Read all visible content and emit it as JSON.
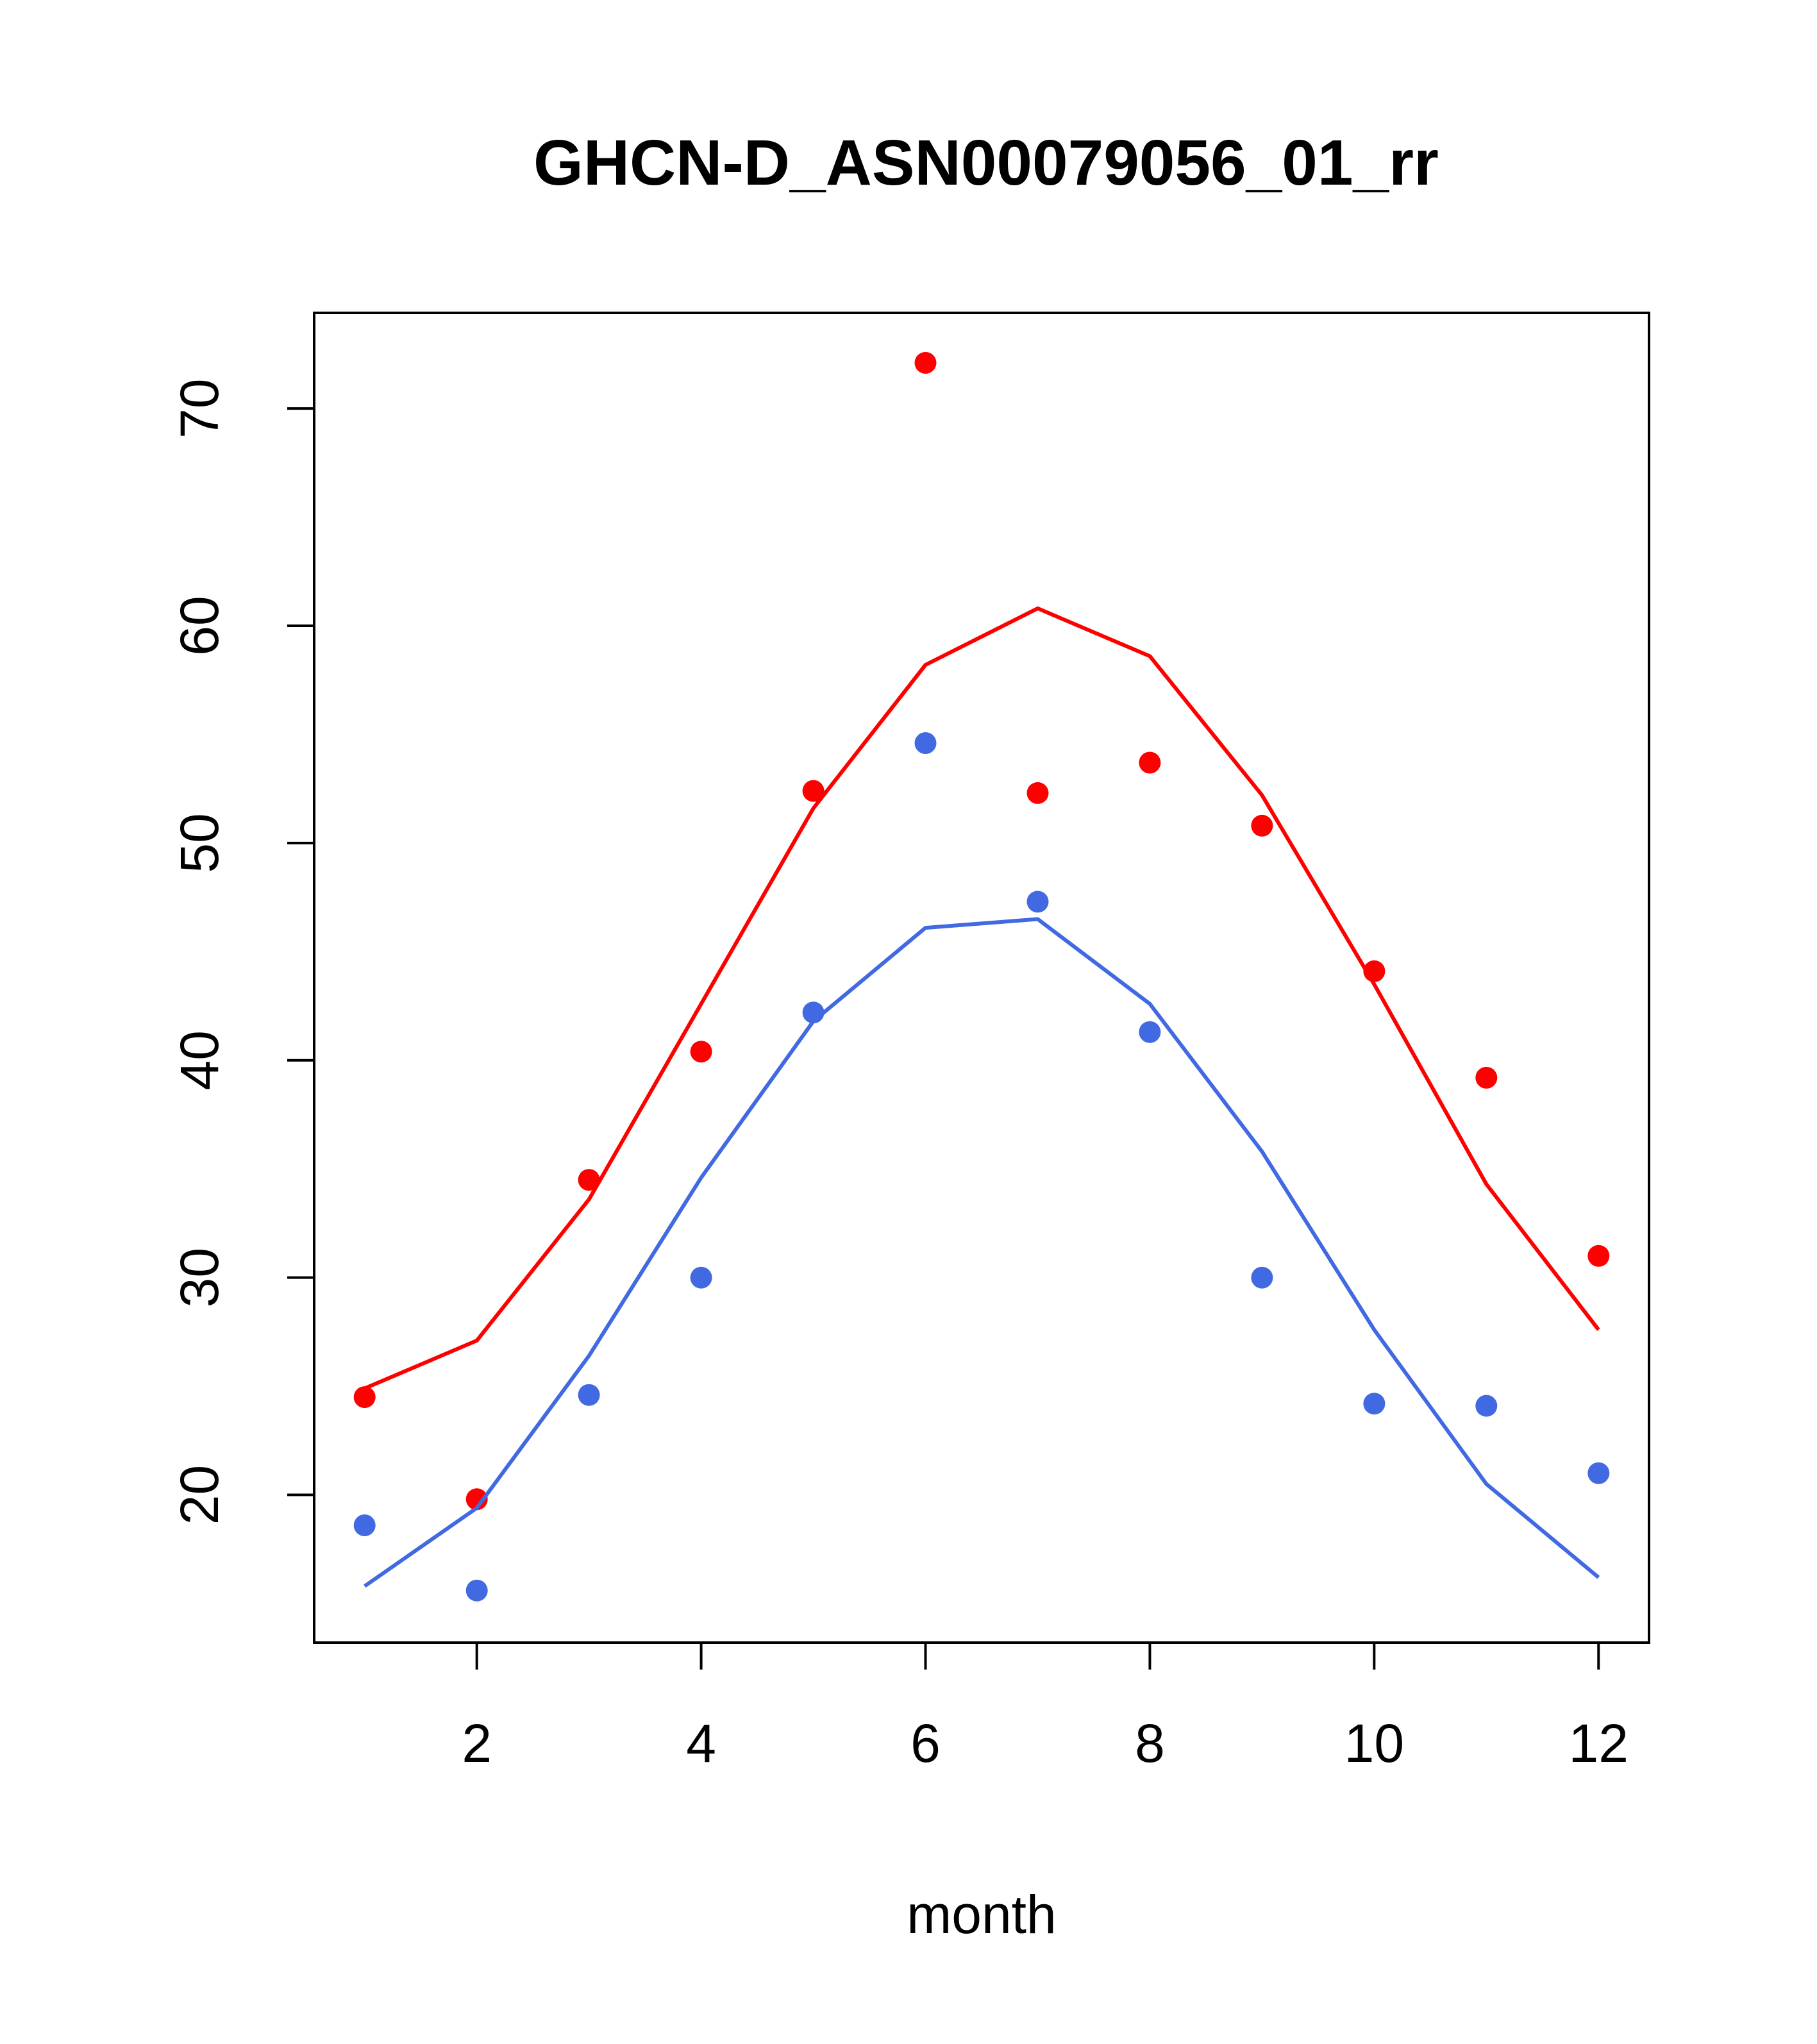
{
  "chart_data": {
    "type": "line",
    "title": "GHCN-D_ASN00079056_01_rr",
    "xlabel": "month",
    "ylabel": "",
    "xlim": [
      0.55,
      12.45
    ],
    "ylim": [
      13.2,
      74.4
    ],
    "x_ticks": [
      2,
      4,
      6,
      8,
      10,
      12
    ],
    "y_ticks": [
      20,
      30,
      40,
      50,
      60,
      70
    ],
    "grid": false,
    "colors": {
      "red": "#ff0000",
      "blue": "#4169e1",
      "axis": "#000000"
    },
    "series": [
      {
        "color": "#ff0000",
        "kind": "points",
        "x": [
          1,
          2,
          3,
          4,
          5,
          6,
          7,
          8,
          9,
          10,
          11,
          12
        ],
        "y": [
          24.5,
          19.8,
          34.5,
          40.4,
          52.4,
          72.1,
          52.3,
          53.7,
          50.8,
          44.1,
          39.2,
          31.0
        ]
      },
      {
        "color": "#ff0000",
        "kind": "line",
        "x": [
          1,
          2,
          3,
          4,
          5,
          6,
          7,
          8,
          9,
          10,
          11,
          12
        ],
        "y": [
          24.9,
          27.1,
          33.6,
          42.6,
          51.6,
          58.2,
          60.8,
          58.6,
          52.2,
          43.5,
          34.3,
          27.6
        ]
      },
      {
        "color": "#4169e1",
        "kind": "points",
        "x": [
          1,
          2,
          3,
          4,
          5,
          6,
          7,
          8,
          9,
          10,
          11,
          12
        ],
        "y": [
          18.6,
          15.6,
          24.6,
          30.0,
          42.2,
          54.6,
          47.3,
          41.3,
          30.0,
          24.2,
          24.1,
          21.0
        ]
      },
      {
        "color": "#4169e1",
        "kind": "line",
        "x": [
          1,
          2,
          3,
          4,
          5,
          6,
          7,
          8,
          9,
          10,
          11,
          12
        ],
        "y": [
          15.8,
          19.4,
          26.4,
          34.6,
          41.8,
          46.1,
          46.5,
          42.6,
          35.8,
          27.6,
          20.5,
          16.2
        ]
      }
    ]
  }
}
